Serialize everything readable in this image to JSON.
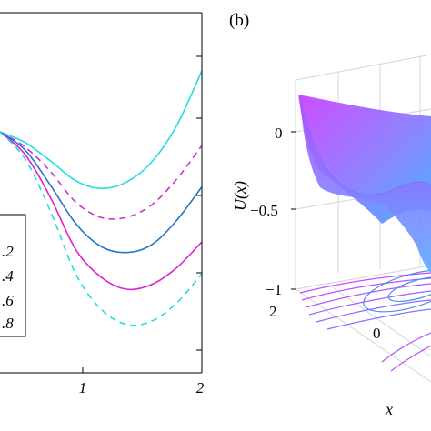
{
  "chart_data": [
    {
      "type": "line",
      "title": "",
      "xlabel": "",
      "ylabel": "",
      "x_ticks": [
        "1",
        "2"
      ],
      "xlim": [
        0,
        2
      ],
      "legend": {
        "placement": "left",
        "entries": [
          ".2",
          ".4",
          ".6",
          ".8"
        ]
      },
      "grid": false,
      "x": [
        0,
        0.25,
        0.5,
        0.75,
        1.0,
        1.25,
        1.5,
        1.75,
        2.0
      ],
      "series": [
        {
          "color": "#22dddd",
          "dash": "solid",
          "values": [
            0.0,
            -0.07,
            -0.19,
            -0.32,
            -0.37,
            -0.33,
            -0.2,
            0.04,
            0.4
          ]
        },
        {
          "color": "#cc33cc",
          "dash": "dashed",
          "values": [
            0.0,
            -0.1,
            -0.26,
            -0.46,
            -0.56,
            -0.56,
            -0.48,
            -0.31,
            -0.09
          ]
        },
        {
          "color": "#2277cc",
          "dash": "solid",
          "values": [
            0.0,
            -0.12,
            -0.35,
            -0.6,
            -0.75,
            -0.79,
            -0.74,
            -0.58,
            -0.36
          ]
        },
        {
          "color": "#dd22cc",
          "dash": "solid",
          "values": [
            0.0,
            -0.15,
            -0.43,
            -0.77,
            -0.95,
            -1.03,
            -1.0,
            -0.89,
            -0.72
          ]
        },
        {
          "color": "#22dddd",
          "dash": "dashed",
          "values": [
            0.0,
            -0.18,
            -0.52,
            -0.93,
            -1.16,
            -1.26,
            -1.24,
            -1.12,
            -0.93
          ]
        }
      ]
    },
    {
      "type": "surface",
      "panel_label": "(b)",
      "xlabel": "x",
      "ylabel": "U(x)",
      "y_ticks": [
        "0",
        "−0.5",
        "−1"
      ],
      "x_ticks": [
        "2",
        "0"
      ],
      "zlim": [
        -1,
        0.2
      ],
      "colormap": [
        "#cc44ff",
        "#4499ff"
      ]
    }
  ],
  "colors": {
    "axis": "#000000",
    "grid3d": "#d4d4d4"
  }
}
